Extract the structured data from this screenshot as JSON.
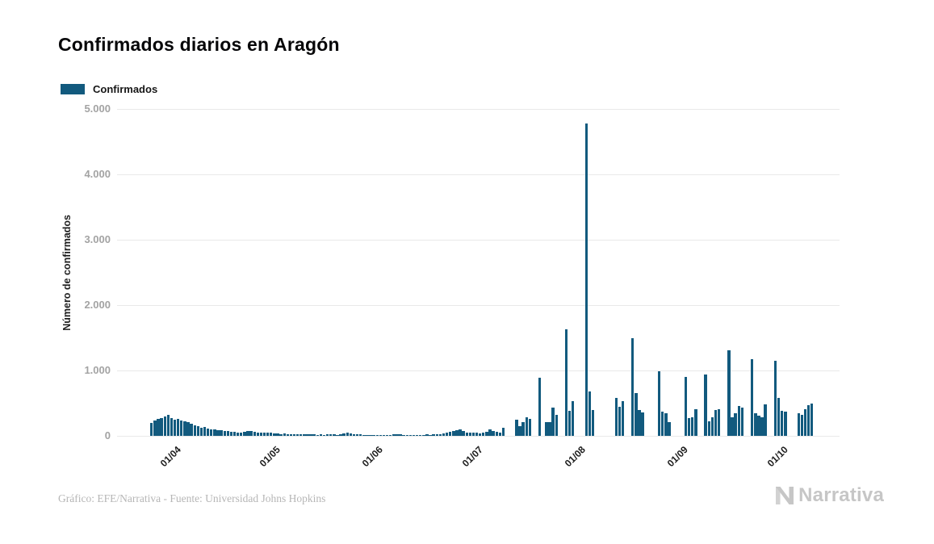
{
  "page": {
    "title": "Confirmados diarios en Aragón",
    "footer_credit": "Gráfico: EFE/Narrativa - Fuente: Universidad Johns Hopkins",
    "brand": "Narrativa"
  },
  "legend": {
    "items": [
      {
        "label": "Confirmados",
        "color": "#125a7e"
      }
    ]
  },
  "chart_data": {
    "type": "bar",
    "title": "Confirmados diarios en Aragón",
    "series_name": "Confirmados",
    "xlabel": "",
    "ylabel": "Número de confirmados",
    "x_start_date": "16/03/2020",
    "x_frequency": "daily",
    "x_tick_labels": [
      "01/04",
      "01/05",
      "01/06",
      "01/07",
      "01/08",
      "01/09",
      "01/10"
    ],
    "x_tick_day_offsets": [
      16,
      46,
      77,
      107,
      138,
      169,
      199
    ],
    "y_ticks": [
      "0",
      "1.000",
      "2.000",
      "3.000",
      "4.000",
      "5.000"
    ],
    "ylim": [
      0,
      5000
    ],
    "grid": "horizontal",
    "legend_position": "top-left",
    "bar_color": "#125a7e",
    "peak_value_approx": 4780,
    "values": [
      0,
      0,
      0,
      0,
      0,
      0,
      0,
      0,
      0,
      0,
      200,
      235,
      260,
      275,
      295,
      315,
      275,
      245,
      265,
      235,
      225,
      205,
      185,
      155,
      145,
      125,
      135,
      115,
      105,
      95,
      90,
      85,
      80,
      70,
      65,
      60,
      55,
      50,
      60,
      70,
      75,
      65,
      55,
      50,
      55,
      50,
      45,
      40,
      35,
      30,
      35,
      30,
      25,
      30,
      25,
      20,
      25,
      30,
      25,
      20,
      15,
      20,
      15,
      20,
      25,
      20,
      15,
      30,
      40,
      45,
      35,
      30,
      25,
      20,
      15,
      10,
      15,
      10,
      15,
      10,
      15,
      10,
      15,
      20,
      30,
      20,
      15,
      10,
      15,
      10,
      15,
      10,
      15,
      20,
      15,
      20,
      25,
      30,
      40,
      50,
      60,
      75,
      90,
      100,
      80,
      55,
      45,
      50,
      45,
      40,
      50,
      60,
      95,
      80,
      60,
      55,
      120,
      0,
      0,
      0,
      250,
      145,
      205,
      280,
      255,
      0,
      0,
      895,
      0,
      215,
      215,
      430,
      320,
      0,
      0,
      1630,
      385,
      535,
      0,
      0,
      0,
      4780,
      680,
      390,
      0,
      0,
      0,
      0,
      0,
      0,
      575,
      450,
      530,
      0,
      0,
      1500,
      650,
      390,
      360,
      0,
      0,
      0,
      0,
      990,
      370,
      350,
      215,
      0,
      0,
      0,
      0,
      905,
      270,
      290,
      410,
      0,
      0,
      940,
      225,
      290,
      390,
      405,
      0,
      0,
      1310,
      290,
      350,
      455,
      435,
      0,
      0,
      1175,
      340,
      310,
      290,
      480,
      0,
      0,
      1145,
      585,
      380,
      365,
      0,
      0,
      0,
      350,
      325,
      405,
      470,
      495
    ]
  }
}
